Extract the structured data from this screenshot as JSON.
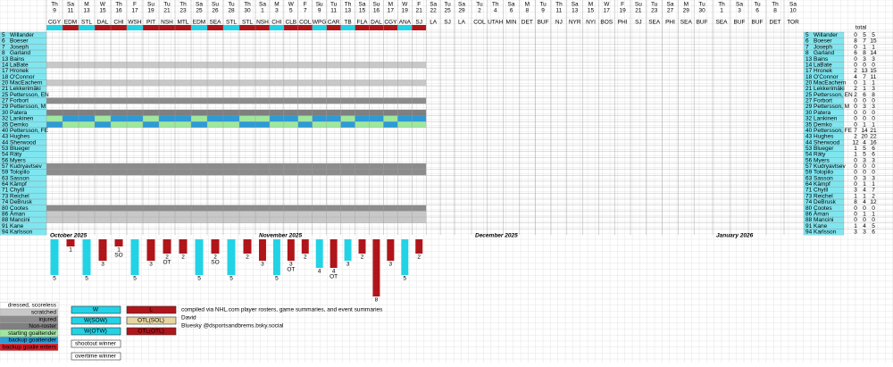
{
  "months": [
    {
      "label": "October 2025",
      "games": [
        {
          "dow": "Th",
          "day": "9",
          "opp": "CGY",
          "res": "W",
          "gf": 5
        },
        {
          "dow": "Sa",
          "day": "11",
          "opp": "EDM",
          "res": "L",
          "gf": 1
        },
        {
          "dow": "M",
          "day": "13",
          "opp": "STL",
          "res": "W",
          "gf": 5
        },
        {
          "dow": "W",
          "day": "15",
          "opp": "DAL",
          "res": "L",
          "gf": 3
        },
        {
          "dow": "Th",
          "day": "16",
          "opp": "CHI",
          "res": "L",
          "gf": 1,
          "note": "SO"
        },
        {
          "dow": "F",
          "day": "17",
          "opp": "WSH",
          "res": "W",
          "gf": 5
        },
        {
          "dow": "Su",
          "day": "19",
          "opp": "PIT",
          "res": "L",
          "gf": 3
        },
        {
          "dow": "Tu",
          "day": "21",
          "opp": "NSH",
          "res": "L",
          "gf": 2,
          "note": "OT"
        },
        {
          "dow": "Th",
          "day": "23",
          "opp": "MTL",
          "res": "L",
          "gf": 2
        },
        {
          "dow": "Sa",
          "day": "25",
          "opp": "EDM",
          "res": "W",
          "gf": 5
        },
        {
          "dow": "Su",
          "day": "26",
          "opp": "SEA",
          "res": "L",
          "gf": 2,
          "note": "SO"
        },
        {
          "dow": "Tu",
          "day": "28",
          "opp": "STL",
          "res": "W",
          "gf": 5
        },
        {
          "dow": "Th",
          "day": "30",
          "opp": "STL",
          "res": "L",
          "gf": 2
        }
      ]
    },
    {
      "label": "November 2025",
      "games": [
        {
          "dow": "Sa",
          "day": "1",
          "opp": "NSH",
          "res": "L",
          "gf": 3
        },
        {
          "dow": "M",
          "day": "3",
          "opp": "CHI",
          "res": "W",
          "gf": 5
        },
        {
          "dow": "W",
          "day": "5",
          "opp": "CLB",
          "res": "L",
          "gf": 3,
          "note": "OT"
        },
        {
          "dow": "F",
          "day": "7",
          "opp": "COL",
          "res": "L",
          "gf": 2
        },
        {
          "dow": "Su",
          "day": "9",
          "opp": "WPG",
          "res": "W",
          "gf": 4
        },
        {
          "dow": "Tu",
          "day": "11",
          "opp": "CAR",
          "res": "L",
          "gf": 4,
          "note": "OT"
        },
        {
          "dow": "Th",
          "day": "13",
          "opp": "TB",
          "res": "W",
          "gf": 3
        },
        {
          "dow": "Sa",
          "day": "15",
          "opp": "FLA",
          "res": "L",
          "gf": 2
        },
        {
          "dow": "Su",
          "day": "16",
          "opp": "DAL",
          "res": "L",
          "gf": 8
        },
        {
          "dow": "M",
          "day": "17",
          "opp": "CGY",
          "res": "L",
          "gf": 3
        },
        {
          "dow": "W",
          "day": "19",
          "opp": "ANA",
          "res": "W",
          "gf": 5
        },
        {
          "dow": "F",
          "day": "21",
          "opp": "SJ",
          "res": "L",
          "gf": 2
        },
        {
          "dow": "Sa",
          "day": "22",
          "opp": "LA"
        },
        {
          "dow": "Tu",
          "day": "25",
          "opp": "SJ"
        },
        {
          "dow": "Sa",
          "day": "29",
          "opp": "LA"
        }
      ]
    },
    {
      "label": "December 2025",
      "games": [
        {
          "dow": "Tu",
          "day": "2",
          "opp": "COL"
        },
        {
          "dow": "Th",
          "day": "4",
          "opp": "UTAH"
        },
        {
          "dow": "Sa",
          "day": "6",
          "opp": "MIN"
        },
        {
          "dow": "M",
          "day": "8",
          "opp": "DET"
        },
        {
          "dow": "Tu",
          "day": "9",
          "opp": "BUF"
        },
        {
          "dow": "Th",
          "day": "11",
          "opp": "NJ"
        },
        {
          "dow": "Sa",
          "day": "13",
          "opp": "NYR"
        },
        {
          "dow": "M",
          "day": "15",
          "opp": "NYI"
        },
        {
          "dow": "W",
          "day": "17",
          "opp": "BOS"
        },
        {
          "dow": "F",
          "day": "19",
          "opp": "PHI"
        },
        {
          "dow": "Su",
          "day": "21",
          "opp": "SJ"
        },
        {
          "dow": "Tu",
          "day": "23",
          "opp": "SEA"
        },
        {
          "dow": "Sa",
          "day": "27",
          "opp": "PHI"
        },
        {
          "dow": "M",
          "day": "29",
          "opp": "SEA"
        },
        {
          "dow": "Tu",
          "day": "30",
          "opp": "BUF"
        }
      ]
    },
    {
      "label": "January 2026",
      "games": [
        {
          "dow": "Th",
          "day": "1",
          "opp": "SEA"
        },
        {
          "dow": "Sa",
          "day": "3",
          "opp": "BUF"
        },
        {
          "dow": "Tu",
          "day": "6",
          "opp": "BUF"
        },
        {
          "dow": "Th",
          "day": "8",
          "opp": "DET"
        },
        {
          "dow": "Sa",
          "day": "10",
          "opp": "TOR"
        }
      ]
    }
  ],
  "players": [
    {
      "num": "5",
      "name": "Willander",
      "totals": [
        0,
        5,
        5
      ]
    },
    {
      "num": "6",
      "name": "Boeser",
      "totals": [
        8,
        7,
        15
      ]
    },
    {
      "num": "7",
      "name": "Joseph",
      "totals": [
        0,
        1,
        1
      ]
    },
    {
      "num": "8",
      "name": "Garland",
      "totals": [
        6,
        8,
        14
      ]
    },
    {
      "num": "13",
      "name": "Bains",
      "totals": [
        0,
        3,
        3
      ]
    },
    {
      "num": "14",
      "name": "LaBate",
      "totals": [
        0,
        0,
        0
      ]
    },
    {
      "num": "17",
      "name": "Hronek",
      "totals": [
        2,
        13,
        15
      ]
    },
    {
      "num": "18",
      "name": "O'Connor",
      "totals": [
        4,
        7,
        11
      ]
    },
    {
      "num": "20",
      "name": "MacEachern",
      "totals": [
        0,
        1,
        1
      ]
    },
    {
      "num": "21",
      "name": "Lekkerimäki",
      "totals": [
        2,
        1,
        3
      ]
    },
    {
      "num": "25",
      "name": "Pettersson, EN",
      "totals": [
        2,
        6,
        8
      ]
    },
    {
      "num": "27",
      "name": "Forbort",
      "totals": [
        0,
        0,
        0
      ]
    },
    {
      "num": "29",
      "name": "Pettersson, M",
      "totals": [
        0,
        3,
        3
      ]
    },
    {
      "num": "30",
      "name": "Patera",
      "totals": [
        0,
        0,
        0
      ]
    },
    {
      "num": "32",
      "name": "Lankinen",
      "totals": [
        0,
        0,
        0
      ]
    },
    {
      "num": "35",
      "name": "Demko",
      "totals": [
        0,
        1,
        1
      ]
    },
    {
      "num": "40",
      "name": "Pettersson, FE",
      "totals": [
        7,
        14,
        21
      ]
    },
    {
      "num": "43",
      "name": "Hughes",
      "totals": [
        2,
        20,
        22
      ]
    },
    {
      "num": "44",
      "name": "Sherwood",
      "totals": [
        12,
        4,
        16
      ]
    },
    {
      "num": "53",
      "name": "Blueger",
      "totals": [
        1,
        5,
        6
      ]
    },
    {
      "num": "54",
      "name": "Räty",
      "totals": [
        1,
        5,
        6
      ]
    },
    {
      "num": "56",
      "name": "Myers",
      "totals": [
        0,
        3,
        3
      ]
    },
    {
      "num": "57",
      "name": "Kudryavtsev",
      "totals": [
        0,
        0,
        0
      ]
    },
    {
      "num": "59",
      "name": "Tolopilo",
      "totals": [
        0,
        0,
        0
      ]
    },
    {
      "num": "63",
      "name": "Sasson",
      "totals": [
        0,
        3,
        3
      ]
    },
    {
      "num": "64",
      "name": "Kämpf",
      "totals": [
        0,
        1,
        1
      ]
    },
    {
      "num": "71",
      "name": "Chytil",
      "totals": [
        3,
        4,
        7
      ]
    },
    {
      "num": "73",
      "name": "Reichel",
      "totals": [
        1,
        1,
        2
      ]
    },
    {
      "num": "74",
      "name": "DeBrusk",
      "totals": [
        8,
        4,
        12
      ]
    },
    {
      "num": "80",
      "name": "Cootes",
      "totals": [
        0,
        0,
        0
      ]
    },
    {
      "num": "86",
      "name": "Åman",
      "totals": [
        0,
        1,
        1
      ]
    },
    {
      "num": "88",
      "name": "Mancini",
      "totals": [
        0,
        0,
        0
      ]
    },
    {
      "num": "91",
      "name": "Kane",
      "totals": [
        1,
        4,
        5
      ]
    },
    {
      "num": "94",
      "name": "Karlsson",
      "totals": [
        3,
        3,
        6
      ]
    }
  ],
  "total_header": "total",
  "status_legend": [
    "dressed, scoreless",
    "scratched",
    "injured",
    "Non-roster",
    "starting goaltender",
    "backup goaltender",
    "backup goalie enters"
  ],
  "result_legend": [
    "W",
    "W(SOW)",
    "W(OTW)",
    "shootout winner",
    "overtime winner",
    "L",
    "OTL(SOL)",
    "OTL(OTL)"
  ],
  "notes": [
    "compiled via NHL.com player rosters, game summaries, and event summaries",
    "David",
    "Bluesky @dsportsandbrems.bsky.social"
  ]
}
